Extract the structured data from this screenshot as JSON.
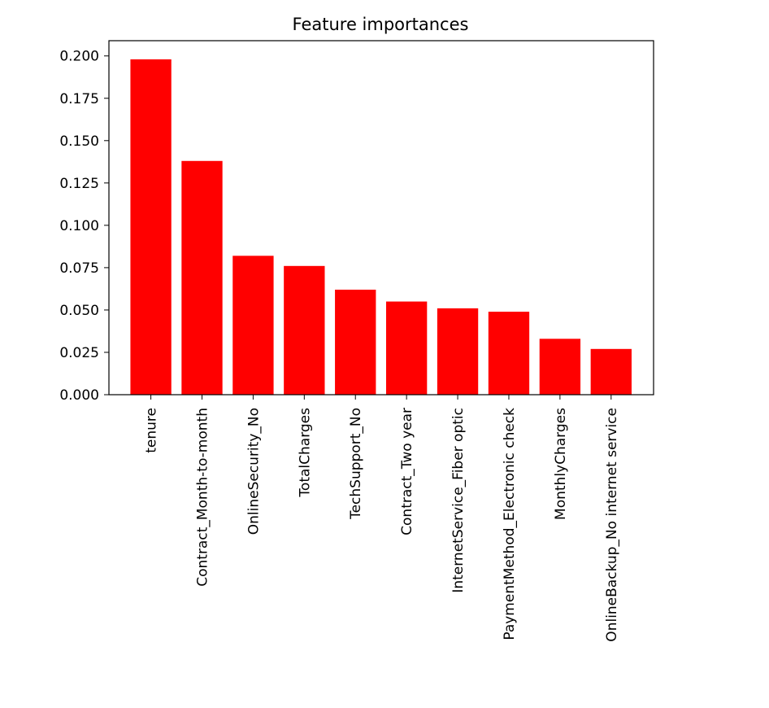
{
  "chart_data": {
    "type": "bar",
    "title": "Feature importances",
    "xlabel": "",
    "ylabel": "",
    "categories": [
      "tenure",
      "Contract_Month-to-month",
      "OnlineSecurity_No",
      "TotalCharges",
      "TechSupport_No",
      "Contract_Two year",
      "InternetService_Fiber optic",
      "PaymentMethod_Electronic check",
      "MonthlyCharges",
      "OnlineBackup_No internet service"
    ],
    "values": [
      0.198,
      0.138,
      0.082,
      0.076,
      0.062,
      0.055,
      0.051,
      0.049,
      0.033,
      0.027
    ],
    "ylim": [
      0,
      0.209
    ],
    "yticks": [
      "0.000",
      "0.025",
      "0.050",
      "0.075",
      "0.100",
      "0.125",
      "0.150",
      "0.175",
      "0.200"
    ],
    "bar_color": "#ff0000",
    "grid": false,
    "legend": "none"
  }
}
